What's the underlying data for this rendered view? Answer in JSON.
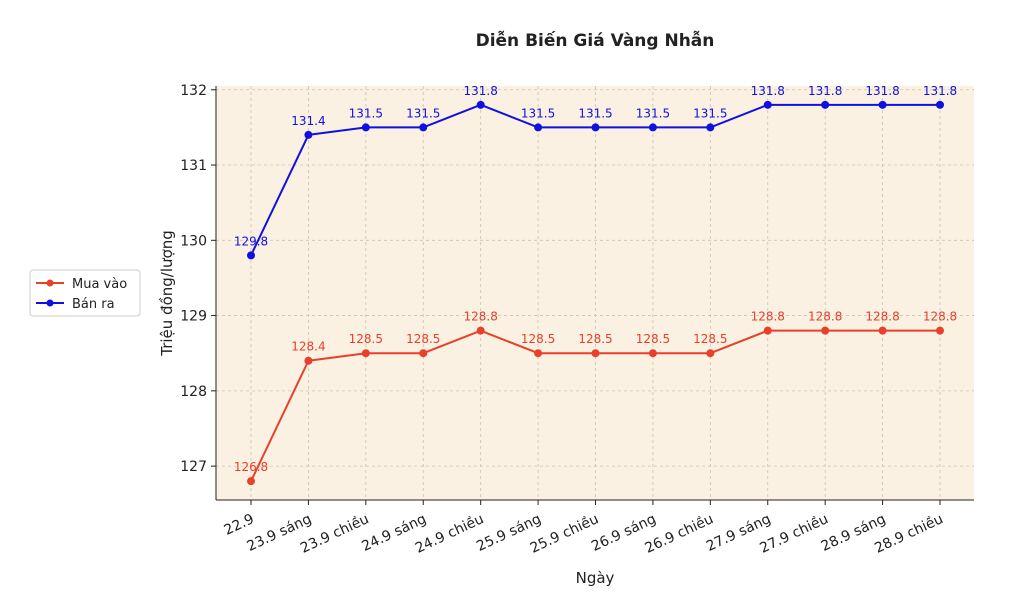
{
  "chart_data": {
    "type": "line",
    "title": "Diễn Biến Giá Vàng Nhẫn",
    "xlabel": "Ngày",
    "ylabel": "Triệu đồng/lượng",
    "categories": [
      "22.9",
      "23.9 sáng",
      "23.9 chiều",
      "24.9 sáng",
      "24.9 chiều",
      "25.9 sáng",
      "25.9 chiều",
      "26.9 sáng",
      "26.9 chiều",
      "27.9 sáng",
      "27.9 chiều",
      "28.9 sáng",
      "28.9 chiều"
    ],
    "ylim": [
      126.55,
      132.05
    ],
    "yticks": [
      127,
      128,
      129,
      130,
      131,
      132
    ],
    "grid": true,
    "legend_position": "left",
    "series": [
      {
        "name": "Mua vào",
        "color": "#e8402b",
        "values": [
          126.8,
          128.4,
          128.5,
          128.5,
          128.8,
          128.5,
          128.5,
          128.5,
          128.5,
          128.8,
          128.8,
          128.8,
          128.8
        ]
      },
      {
        "name": "Bán ra",
        "color": "#1010e0",
        "values": [
          129.8,
          131.4,
          131.5,
          131.5,
          131.8,
          131.5,
          131.5,
          131.5,
          131.5,
          131.8,
          131.8,
          131.8,
          131.8
        ]
      }
    ],
    "plot_background": "#fbf1e2"
  }
}
